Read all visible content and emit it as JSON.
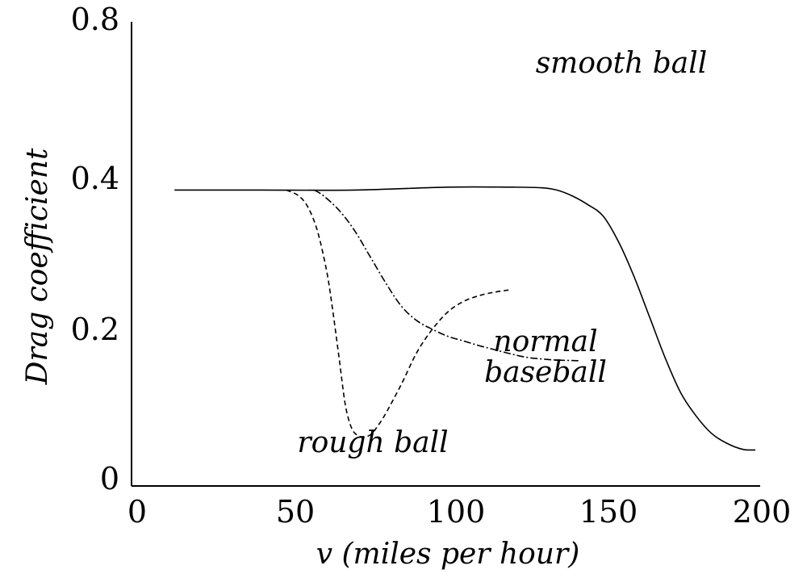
{
  "chart_data": {
    "type": "line",
    "title": "",
    "xlabel": "v (miles per hour)",
    "ylabel": "Drag coefficient",
    "xlim": [
      0,
      200
    ],
    "ylim": [
      0,
      0.8
    ],
    "x_ticks": [
      "0",
      "50",
      "100",
      "150",
      "200"
    ],
    "y_ticks": [
      "0",
      "0.2",
      "0.4",
      "0.8"
    ],
    "grid": false,
    "series": [
      {
        "name": "smooth ball",
        "label_lines": [
          "smooth ball"
        ],
        "dash": "solid",
        "x": [
          12,
          40,
          70,
          100,
          120,
          130,
          135,
          140,
          145,
          150,
          155,
          160,
          165,
          170,
          175,
          180,
          185,
          190,
          195,
          199
        ],
        "y": [
          0.51,
          0.51,
          0.51,
          0.515,
          0.515,
          0.514,
          0.51,
          0.5,
          0.485,
          0.465,
          0.42,
          0.36,
          0.29,
          0.22,
          0.16,
          0.12,
          0.09,
          0.073,
          0.063,
          0.062
        ]
      },
      {
        "name": "normal baseball",
        "label_lines": [
          "normal",
          "baseball"
        ],
        "dash": "dashdot",
        "x": [
          57,
          60,
          65,
          70,
          75,
          80,
          85,
          90,
          95,
          100,
          105,
          110,
          115,
          120,
          125,
          130,
          135,
          142
        ],
        "y": [
          0.51,
          0.5,
          0.475,
          0.44,
          0.395,
          0.35,
          0.31,
          0.285,
          0.27,
          0.258,
          0.25,
          0.242,
          0.235,
          0.228,
          0.222,
          0.219,
          0.217,
          0.216
        ]
      },
      {
        "name": "rough ball",
        "label_lines": [
          "rough ball"
        ],
        "dash": "dashed",
        "x": [
          48,
          52,
          55,
          58,
          61,
          63,
          65,
          67,
          69,
          71,
          73,
          75,
          77,
          80,
          85,
          90,
          95,
          100,
          105,
          110,
          115,
          120
        ],
        "y": [
          0.51,
          0.5,
          0.48,
          0.44,
          0.37,
          0.3,
          0.22,
          0.14,
          0.1,
          0.087,
          0.085,
          0.088,
          0.1,
          0.125,
          0.175,
          0.23,
          0.27,
          0.3,
          0.318,
          0.328,
          0.334,
          0.338
        ]
      }
    ]
  }
}
